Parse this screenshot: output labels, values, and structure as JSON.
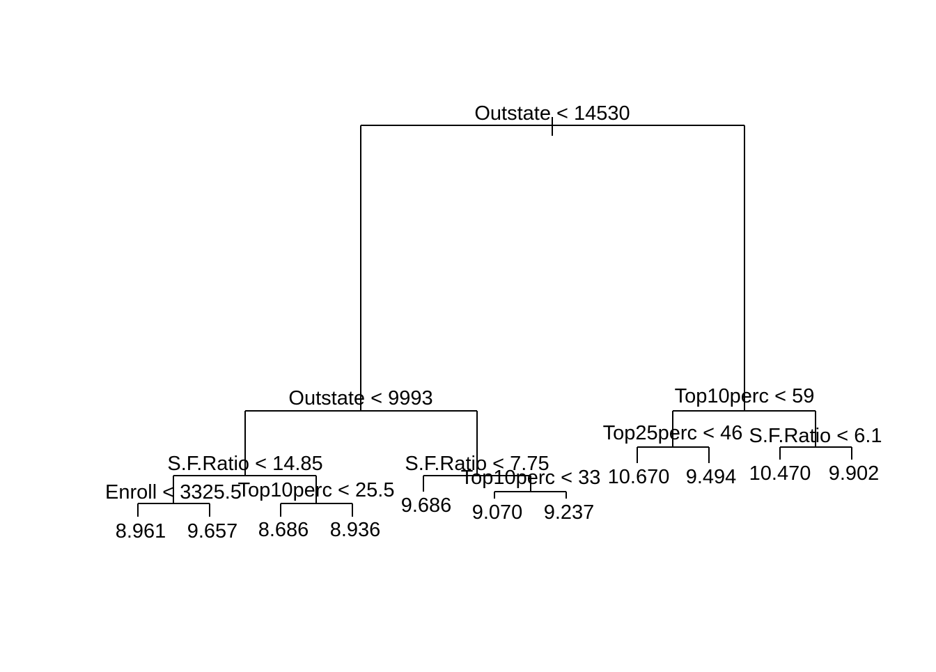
{
  "tree": {
    "line_color": "#000000",
    "background": "#ffffff",
    "nodes": [
      {
        "id": "root",
        "label": "Outstate < 14530"
      },
      {
        "id": "n-left",
        "label": "Outstate < 9993"
      },
      {
        "id": "n-right",
        "label": "Top10perc < 59"
      },
      {
        "id": "n-ll",
        "label": "S.F.Ratio < 14.85"
      },
      {
        "id": "n-lr",
        "label": "S.F.Ratio < 7.75"
      },
      {
        "id": "n-lll",
        "label": "Enroll < 3325.5"
      },
      {
        "id": "n-llr",
        "label": "Top10perc < 25.5"
      },
      {
        "id": "n-lrr",
        "label": "Top10perc < 33"
      },
      {
        "id": "n-rl",
        "label": "Top25perc < 46"
      },
      {
        "id": "n-rr",
        "label": "S.F.Ratio < 6.1"
      }
    ],
    "leaves": [
      {
        "id": "leaf-1",
        "value": "8.961"
      },
      {
        "id": "leaf-2",
        "value": "9.657"
      },
      {
        "id": "leaf-3",
        "value": "8.686"
      },
      {
        "id": "leaf-4",
        "value": "8.936"
      },
      {
        "id": "leaf-5",
        "value": "9.686"
      },
      {
        "id": "leaf-6",
        "value": "9.070"
      },
      {
        "id": "leaf-7",
        "value": "9.237"
      },
      {
        "id": "leaf-8",
        "value": "10.670"
      },
      {
        "id": "leaf-9",
        "value": "9.494"
      },
      {
        "id": "leaf-10",
        "value": "10.470"
      },
      {
        "id": "leaf-11",
        "value": "9.902"
      }
    ]
  }
}
